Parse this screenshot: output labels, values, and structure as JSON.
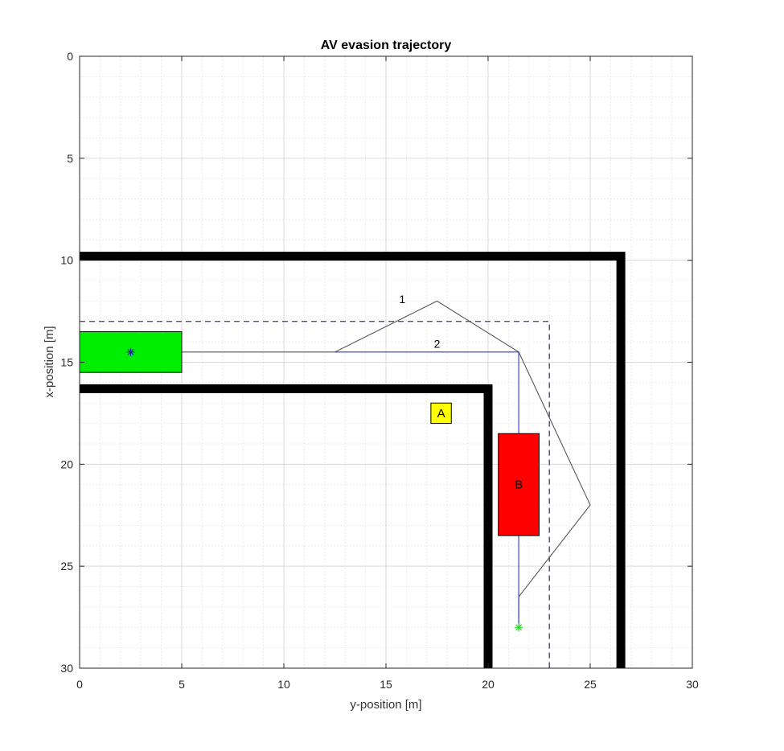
{
  "chart_data": {
    "type": "line",
    "title": "AV evasion trajectory",
    "xlabel": "y-position [m]",
    "ylabel": "x-position [m]",
    "xlim": [
      0,
      30
    ],
    "ylim": [
      0,
      30
    ],
    "y_reversed": true,
    "grid": true,
    "minor_grid": true,
    "x_ticks": [
      0,
      5,
      10,
      15,
      20,
      25,
      30
    ],
    "y_ticks": [
      0,
      5,
      10,
      15,
      20,
      25,
      30
    ],
    "walls": [
      {
        "x": [
          0,
          26.5,
          26.5
        ],
        "y": [
          9.8,
          9.8,
          30
        ],
        "color": "#000000"
      },
      {
        "x": [
          0,
          20,
          20
        ],
        "y": [
          16.3,
          16.3,
          30
        ],
        "color": "#000000"
      }
    ],
    "boundary": {
      "x": [
        0,
        23,
        23
      ],
      "y": [
        13,
        13,
        30
      ],
      "color": "#3a3f6e"
    },
    "trajectories": [
      {
        "label": "1",
        "label_pos": [
          15.8,
          12.1
        ],
        "color": "#555555",
        "x": [
          2.5,
          12.5,
          17.5,
          21.5,
          25,
          21.5,
          21.5
        ],
        "y": [
          14.5,
          14.5,
          12,
          14.5,
          22,
          26.5,
          28
        ]
      },
      {
        "label": "2",
        "label_pos": [
          17.5,
          14.3
        ],
        "color": "#3333cc",
        "x": [
          12.5,
          21.5,
          21.5
        ],
        "y": [
          14.5,
          14.5,
          28
        ]
      }
    ],
    "vehicles": [
      {
        "x0": 0,
        "x1": 5,
        "y0": 13.5,
        "y1": 15.5,
        "color": "#00ee00",
        "label": ""
      },
      {
        "x0": 20.5,
        "x1": 22.5,
        "y0": 18.5,
        "y1": 23.5,
        "color": "#ff0000",
        "label": "B"
      }
    ],
    "boxes": [
      {
        "x0": 17.2,
        "x1": 18.2,
        "y0": 17,
        "y1": 18,
        "color": "#ffff00",
        "label": "A"
      }
    ],
    "markers": [
      {
        "x": 2.5,
        "y": 14.5,
        "color": "#2222aa"
      },
      {
        "x": 21.5,
        "y": 28,
        "color": "#22dd22"
      }
    ]
  }
}
